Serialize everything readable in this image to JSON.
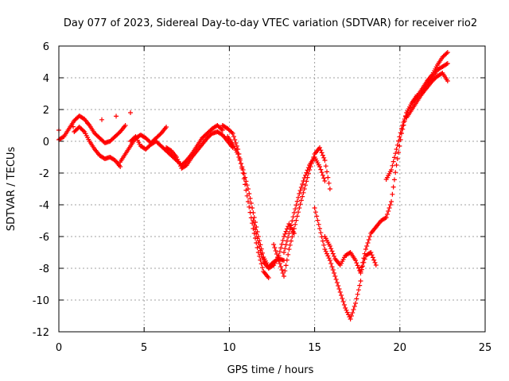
{
  "chart_data": {
    "type": "scatter",
    "title": "Day 077 of 2023, Sidereal Day-to-day VTEC variation (SDTVAR) for receiver rio2",
    "xlabel": "GPS time / hours",
    "ylabel": "SDTVAR / TECUs",
    "xlim": [
      0,
      25
    ],
    "ylim": [
      -12,
      6
    ],
    "xticks": [
      0,
      5,
      10,
      15,
      20,
      25
    ],
    "yticks": [
      -12,
      -10,
      -8,
      -6,
      -4,
      -2,
      0,
      2,
      4,
      6
    ],
    "grid": true,
    "marker": "+",
    "color": "#ff0000",
    "series": [
      {
        "x": [
          0,
          0.3,
          0.6,
          0.9,
          1.2,
          1.5,
          1.8,
          2.1,
          2.4,
          2.7,
          3.0,
          3.3,
          3.6,
          3.9
        ],
        "y": [
          0.1,
          0.3,
          0.8,
          1.3,
          1.6,
          1.4,
          1.0,
          0.5,
          0.2,
          -0.1,
          0.0,
          0.3,
          0.6,
          1.0
        ]
      },
      {
        "x": [
          0.9,
          1.2,
          1.5,
          1.8,
          2.1,
          2.4,
          2.7,
          3.0,
          3.3,
          3.6
        ],
        "y": [
          0.6,
          0.9,
          0.6,
          0.0,
          -0.5,
          -0.9,
          -1.1,
          -1.0,
          -1.2,
          -1.6
        ]
      },
      {
        "x": [
          3.6,
          3.9,
          4.2,
          4.5,
          4.8,
          5.1,
          5.4,
          5.7,
          6.0,
          6.3
        ],
        "y": [
          -1.3,
          -0.8,
          -0.3,
          0.2,
          0.4,
          0.2,
          -0.1,
          0.2,
          0.5,
          0.9
        ]
      },
      {
        "x": [
          4.2,
          4.5,
          4.8,
          5.1,
          5.4,
          5.7,
          6.0,
          6.3,
          6.6,
          6.9,
          7.2,
          7.5,
          7.8,
          8.1,
          8.4,
          8.7,
          9.0,
          9.3,
          9.6
        ],
        "y": [
          0.0,
          0.3,
          -0.3,
          -0.5,
          -0.2,
          0.0,
          -0.3,
          -0.6,
          -0.9,
          -1.2,
          -1.5,
          -1.2,
          -0.8,
          -0.3,
          0.2,
          0.5,
          0.8,
          1.0,
          0.7
        ]
      },
      {
        "x": [
          6.3,
          6.6,
          6.9,
          7.2,
          7.5,
          7.8,
          8.1,
          8.4,
          8.7,
          9.0,
          9.3,
          9.6,
          9.9,
          10.2
        ],
        "y": [
          -0.4,
          -0.6,
          -1.0,
          -1.7,
          -1.5,
          -1.0,
          -0.6,
          -0.2,
          0.2,
          0.5,
          0.6,
          0.4,
          0.0,
          -0.4
        ]
      },
      {
        "x": [
          9.6,
          9.9,
          10.2,
          10.5,
          10.8,
          11.1,
          11.4,
          11.7,
          12.0,
          12.3
        ],
        "y": [
          1.0,
          0.8,
          0.5,
          -0.5,
          -2.0,
          -3.8,
          -5.5,
          -7.0,
          -8.2,
          -8.6
        ]
      },
      {
        "x": [
          9.9,
          10.2,
          10.5,
          10.8,
          11.1,
          11.4,
          11.7,
          12.0,
          12.3,
          12.6,
          12.9,
          13.2
        ],
        "y": [
          0.3,
          -0.2,
          -0.8,
          -1.8,
          -3.0,
          -4.5,
          -6.0,
          -7.3,
          -7.9,
          -7.6,
          -7.4,
          -7.5
        ]
      },
      {
        "x": [
          11.4,
          11.7,
          12.0,
          12.3,
          12.6,
          12.9,
          13.2,
          13.5,
          13.8
        ],
        "y": [
          -5.0,
          -6.4,
          -7.6,
          -8.0,
          -7.8,
          -7.2,
          -6.0,
          -5.2,
          -5.8
        ]
      },
      {
        "x": [
          12.6,
          12.9,
          13.2,
          13.5,
          13.8,
          14.1,
          14.4,
          14.7,
          15.0,
          15.3,
          15.6,
          15.9
        ],
        "y": [
          -6.5,
          -7.5,
          -8.5,
          -6.8,
          -5.5,
          -4.2,
          -3.0,
          -1.8,
          -0.8,
          -0.4,
          -1.2,
          -3.0
        ]
      },
      {
        "x": [
          13.2,
          13.5,
          13.8,
          14.1,
          14.4,
          14.7,
          15.0,
          15.3,
          15.6
        ],
        "y": [
          -7.0,
          -5.8,
          -4.5,
          -3.3,
          -2.3,
          -1.5,
          -1.0,
          -1.6,
          -2.5
        ]
      },
      {
        "x": [
          15.0,
          15.3,
          15.6,
          15.9,
          16.2,
          16.5,
          16.8,
          17.1,
          17.4,
          17.7
        ],
        "y": [
          -4.2,
          -5.5,
          -6.8,
          -7.5,
          -8.5,
          -9.5,
          -10.5,
          -11.2,
          -10.2,
          -8.8
        ]
      },
      {
        "x": [
          15.6,
          15.9,
          16.2,
          16.5,
          16.8,
          17.1,
          17.4,
          17.7,
          18.0,
          18.3,
          18.6
        ],
        "y": [
          -6.0,
          -6.6,
          -7.4,
          -7.8,
          -7.2,
          -7.0,
          -7.5,
          -8.3,
          -7.2,
          -7.0,
          -7.8
        ]
      },
      {
        "x": [
          17.7,
          18.0,
          18.3,
          18.6,
          18.9,
          19.2,
          19.5,
          19.8,
          20.1,
          20.4,
          20.7,
          21.0
        ],
        "y": [
          -8.2,
          -6.8,
          -5.8,
          -5.4,
          -5.0,
          -4.8,
          -3.8,
          -1.5,
          0.5,
          1.8,
          2.4,
          2.9
        ]
      },
      {
        "x": [
          19.2,
          19.5,
          19.8,
          20.1,
          20.4,
          20.7,
          21.0,
          21.3,
          21.6,
          21.9,
          22.2,
          22.5,
          22.8
        ],
        "y": [
          -2.4,
          -1.8,
          -0.5,
          0.8,
          1.8,
          2.4,
          2.8,
          3.3,
          3.8,
          4.2,
          4.8,
          5.3,
          5.6
        ]
      },
      {
        "x": [
          20.4,
          20.7,
          21.0,
          21.3,
          21.6,
          21.9,
          22.2,
          22.5,
          22.8
        ],
        "y": [
          1.5,
          2.0,
          2.5,
          3.0,
          3.6,
          4.0,
          4.5,
          4.7,
          4.9
        ]
      },
      {
        "x": [
          21.3,
          21.6,
          21.9,
          22.2,
          22.5,
          22.8
        ],
        "y": [
          3.0,
          3.4,
          3.8,
          4.1,
          4.3,
          3.8
        ]
      },
      {
        "x": [
          0.0,
          4.2
        ],
        "y": [
          0.7,
          1.8
        ]
      }
    ]
  }
}
